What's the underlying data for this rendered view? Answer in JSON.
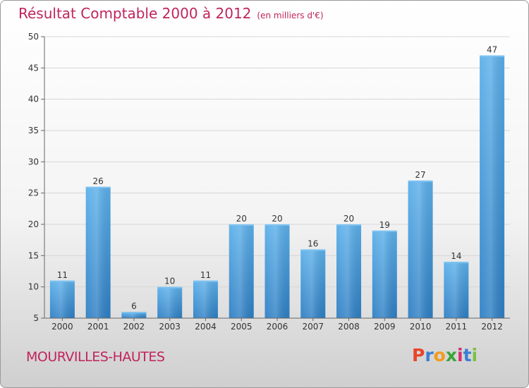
{
  "header": {
    "title": "Résultat Comptable 2000 à 2012",
    "unit": "(en milliers d'€)"
  },
  "footer": {
    "town": "MOURVILLES-HAUTES",
    "logo": "Proxiti",
    "logo_colors": [
      "#e8452a",
      "#3a7fd4",
      "#f29a1f",
      "#3aa53a",
      "#d62f6e",
      "#3a7fd4",
      "#7cc142"
    ]
  },
  "chart_data": {
    "type": "bar",
    "title": "Résultat Comptable 2000 à 2012",
    "xlabel": "",
    "ylabel": "",
    "categories": [
      "2000",
      "2001",
      "2002",
      "2003",
      "2004",
      "2005",
      "2006",
      "2007",
      "2008",
      "2009",
      "2010",
      "2011",
      "2012"
    ],
    "values": [
      11,
      26,
      6,
      10,
      11,
      20,
      20,
      16,
      20,
      19,
      27,
      14,
      47
    ],
    "ylim": [
      5,
      50
    ],
    "yticks": [
      5,
      10,
      15,
      20,
      25,
      30,
      35,
      40,
      45,
      50
    ],
    "grid": true,
    "bar_color": "#4aa0e0"
  }
}
